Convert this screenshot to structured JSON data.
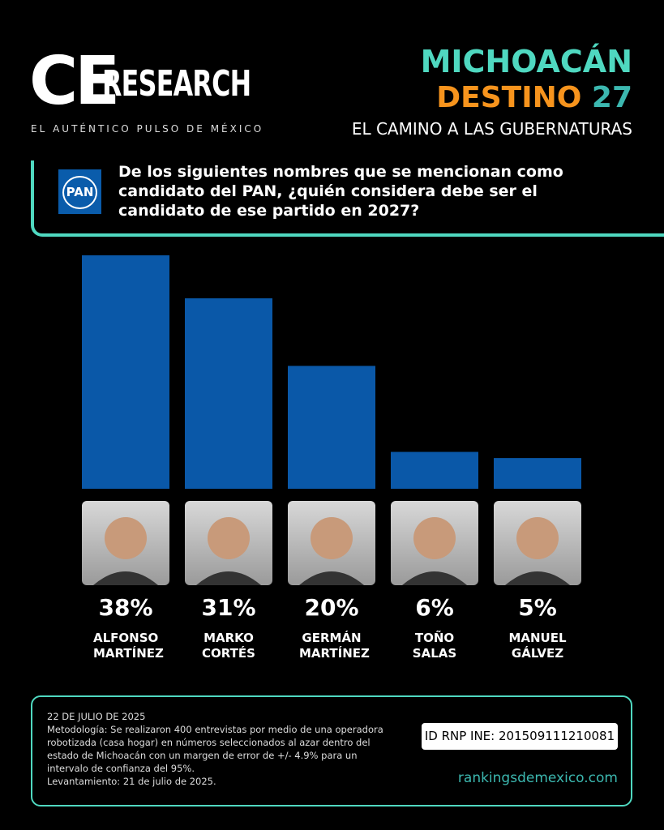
{
  "header": {
    "brand_ce": "CE",
    "brand_research": "RESEARCH",
    "tagline": "EL AUTÉNTICO PULSO DE MÉXICO",
    "state": "MICHOACÁN",
    "destino": "DESTINO",
    "year": "27",
    "subtitle": "EL CAMINO A LAS GUBERNATURAS",
    "party_logo": "PAN"
  },
  "chart_data": {
    "type": "bar",
    "title": "De los siguientes nombres que se mencionan como candidato del PAN, ¿quién considera debe ser el candidato de ese partido en 2027?",
    "categories": [
      "ALFONSO MARTÍNEZ",
      "MARKO CORTÉS",
      "GERMÁN MARTÍNEZ",
      "TOÑO SALAS",
      "MANUEL GÁLVEZ"
    ],
    "values": [
      38,
      31,
      20,
      6,
      5
    ],
    "value_labels": [
      "38%",
      "31%",
      "20%",
      "6%",
      "5%"
    ],
    "color": "#0a58a8"
  },
  "footer": {
    "date": "22 DE JULIO DE 2025",
    "methodology": "Metodología: Se realizaron 400 entrevistas por medio de una operadora robotizada (casa hogar) en números seleccionados al azar dentro del estado de Michoacán con un margen de error de +/- 4.9% para un intervalo de confianza del 95%.",
    "fieldwork": "Levantamiento: 21 de julio de 2025.",
    "id": "ID RNP INE: 201509111210081",
    "website": "rankingsdemexico.com"
  }
}
